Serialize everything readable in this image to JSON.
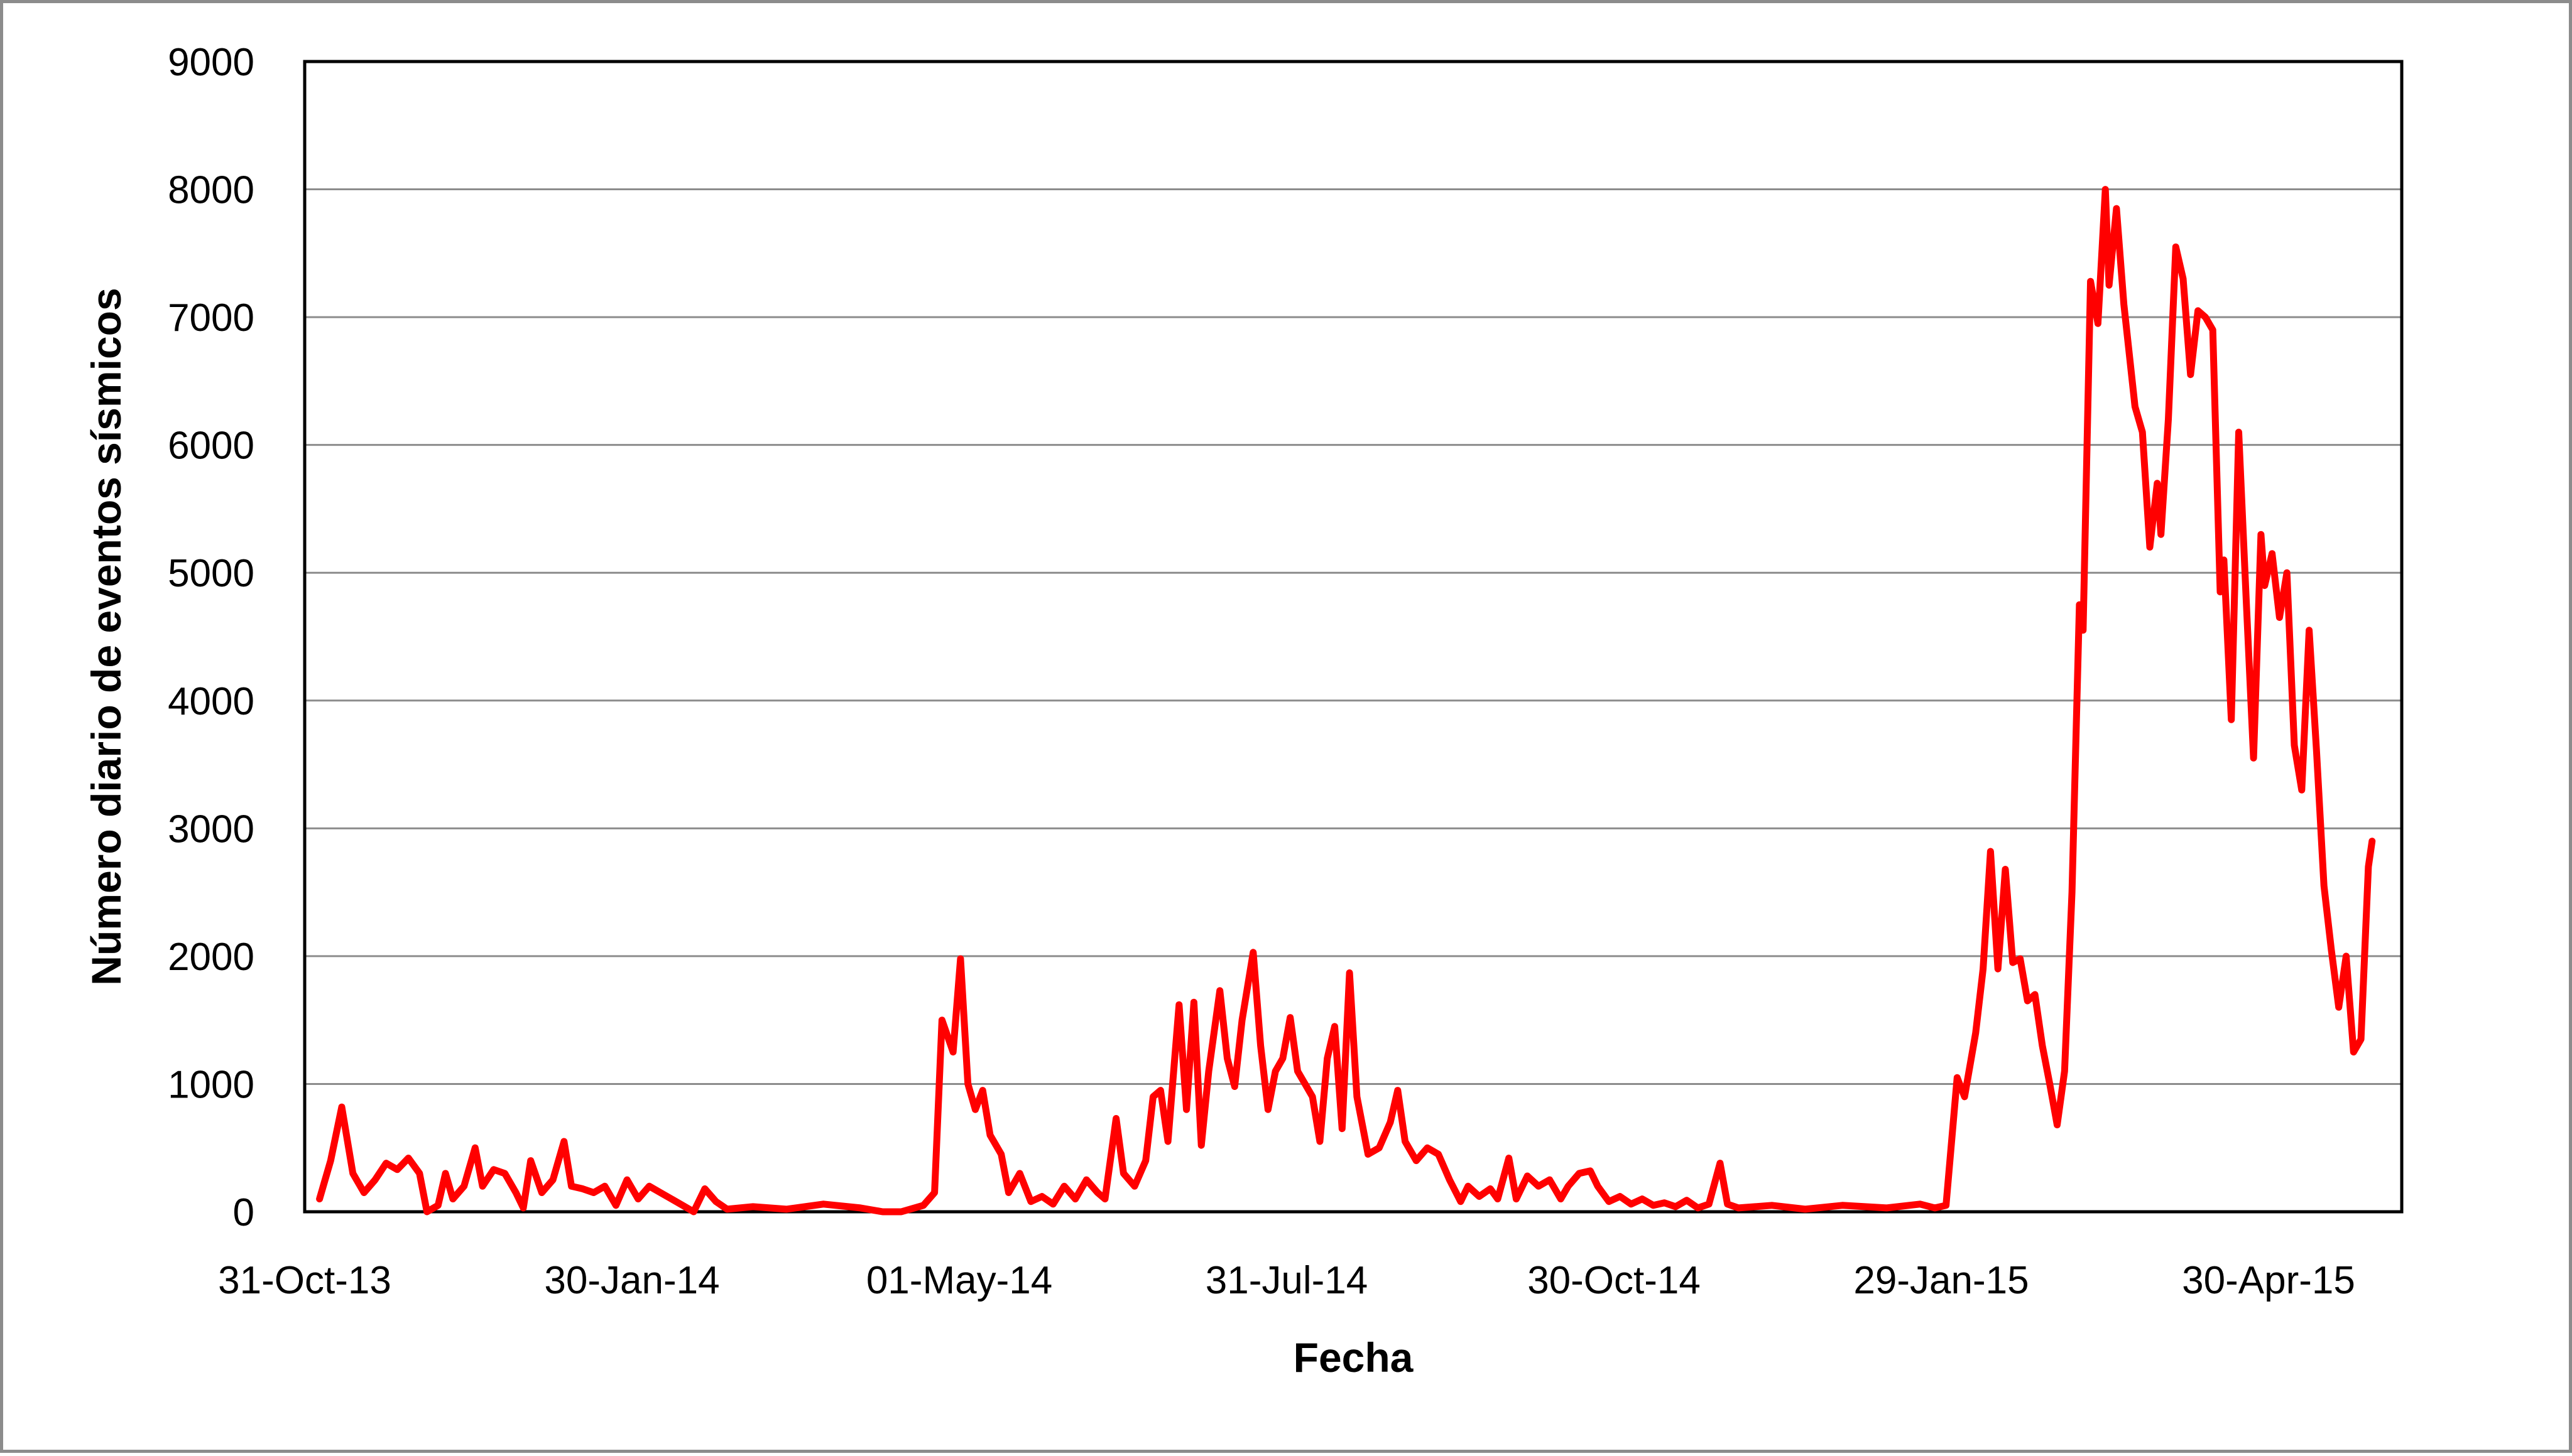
{
  "chart_data": {
    "type": "line",
    "title": "",
    "xlabel": "Fecha",
    "ylabel": "Número diario de eventos sísmicos",
    "x_tick_labels": [
      "31-Oct-13",
      "30-Jan-14",
      "01-May-14",
      "31-Jul-14",
      "30-Oct-14",
      "29-Jan-15",
      "30-Apr-15"
    ],
    "y_tick_labels": [
      "0",
      "1000",
      "2000",
      "3000",
      "4000",
      "5000",
      "6000",
      "7000",
      "8000",
      "9000"
    ],
    "x_range": [
      "2013-10-31",
      "2015-05-20"
    ],
    "ylim": [
      0,
      9000
    ],
    "grid": true,
    "legend": "none",
    "series": [
      {
        "color": "#ff0000",
        "points": [
          [
            "2013-11-04",
            100
          ],
          [
            "2013-11-07",
            400
          ],
          [
            "2013-11-10",
            820
          ],
          [
            "2013-11-13",
            300
          ],
          [
            "2013-11-16",
            150
          ],
          [
            "2013-11-19",
            250
          ],
          [
            "2013-11-22",
            380
          ],
          [
            "2013-11-25",
            330
          ],
          [
            "2013-11-28",
            420
          ],
          [
            "2013-12-01",
            300
          ],
          [
            "2013-12-03",
            0
          ],
          [
            "2013-12-06",
            50
          ],
          [
            "2013-12-08",
            300
          ],
          [
            "2013-12-10",
            100
          ],
          [
            "2013-12-13",
            200
          ],
          [
            "2013-12-16",
            500
          ],
          [
            "2013-12-18",
            200
          ],
          [
            "2013-12-21",
            330
          ],
          [
            "2013-12-24",
            300
          ],
          [
            "2013-12-27",
            150
          ],
          [
            "2013-12-29",
            30
          ],
          [
            "2013-12-31",
            400
          ],
          [
            "2014-01-03",
            150
          ],
          [
            "2014-01-06",
            250
          ],
          [
            "2014-01-09",
            550
          ],
          [
            "2014-01-11",
            200
          ],
          [
            "2014-01-14",
            180
          ],
          [
            "2014-01-17",
            150
          ],
          [
            "2014-01-20",
            200
          ],
          [
            "2014-01-23",
            50
          ],
          [
            "2014-01-26",
            250
          ],
          [
            "2014-01-29",
            100
          ],
          [
            "2014-02-01",
            200
          ],
          [
            "2014-02-04",
            150
          ],
          [
            "2014-02-07",
            100
          ],
          [
            "2014-02-10",
            50
          ],
          [
            "2014-02-13",
            0
          ],
          [
            "2014-02-16",
            180
          ],
          [
            "2014-02-19",
            80
          ],
          [
            "2014-02-22",
            20
          ],
          [
            "2014-03-01",
            40
          ],
          [
            "2014-03-10",
            20
          ],
          [
            "2014-03-20",
            60
          ],
          [
            "2014-03-30",
            30
          ],
          [
            "2014-04-05",
            0
          ],
          [
            "2014-04-10",
            0
          ],
          [
            "2014-04-16",
            50
          ],
          [
            "2014-04-19",
            150
          ],
          [
            "2014-04-21",
            1500
          ],
          [
            "2014-04-24",
            1250
          ],
          [
            "2014-04-26",
            1980
          ],
          [
            "2014-04-28",
            1000
          ],
          [
            "2014-04-30",
            800
          ],
          [
            "2014-05-02",
            950
          ],
          [
            "2014-05-04",
            600
          ],
          [
            "2014-05-07",
            450
          ],
          [
            "2014-05-09",
            150
          ],
          [
            "2014-05-12",
            300
          ],
          [
            "2014-05-15",
            80
          ],
          [
            "2014-05-18",
            120
          ],
          [
            "2014-05-21",
            60
          ],
          [
            "2014-05-24",
            200
          ],
          [
            "2014-05-27",
            100
          ],
          [
            "2014-05-30",
            250
          ],
          [
            "2014-06-02",
            150
          ],
          [
            "2014-06-04",
            100
          ],
          [
            "2014-06-07",
            730
          ],
          [
            "2014-06-09",
            300
          ],
          [
            "2014-06-12",
            200
          ],
          [
            "2014-06-15",
            400
          ],
          [
            "2014-06-17",
            900
          ],
          [
            "2014-06-19",
            950
          ],
          [
            "2014-06-21",
            550
          ],
          [
            "2014-06-24",
            1620
          ],
          [
            "2014-06-26",
            800
          ],
          [
            "2014-06-28",
            1640
          ],
          [
            "2014-06-30",
            520
          ],
          [
            "2014-07-02",
            1100
          ],
          [
            "2014-07-05",
            1730
          ],
          [
            "2014-07-07",
            1200
          ],
          [
            "2014-07-09",
            980
          ],
          [
            "2014-07-11",
            1500
          ],
          [
            "2014-07-14",
            2030
          ],
          [
            "2014-07-16",
            1300
          ],
          [
            "2014-07-18",
            800
          ],
          [
            "2014-07-20",
            1100
          ],
          [
            "2014-07-22",
            1200
          ],
          [
            "2014-07-24",
            1520
          ],
          [
            "2014-07-26",
            1100
          ],
          [
            "2014-07-28",
            1000
          ],
          [
            "2014-07-30",
            900
          ],
          [
            "2014-08-01",
            550
          ],
          [
            "2014-08-03",
            1200
          ],
          [
            "2014-08-05",
            1450
          ],
          [
            "2014-08-07",
            650
          ],
          [
            "2014-08-09",
            1870
          ],
          [
            "2014-08-11",
            900
          ],
          [
            "2014-08-14",
            450
          ],
          [
            "2014-08-17",
            500
          ],
          [
            "2014-08-20",
            700
          ],
          [
            "2014-08-22",
            950
          ],
          [
            "2014-08-24",
            550
          ],
          [
            "2014-08-27",
            400
          ],
          [
            "2014-08-30",
            500
          ],
          [
            "2014-09-02",
            450
          ],
          [
            "2014-09-05",
            250
          ],
          [
            "2014-09-08",
            80
          ],
          [
            "2014-09-10",
            200
          ],
          [
            "2014-09-13",
            120
          ],
          [
            "2014-09-16",
            180
          ],
          [
            "2014-09-18",
            100
          ],
          [
            "2014-09-21",
            420
          ],
          [
            "2014-09-23",
            100
          ],
          [
            "2014-09-26",
            280
          ],
          [
            "2014-09-29",
            200
          ],
          [
            "2014-10-02",
            250
          ],
          [
            "2014-10-05",
            100
          ],
          [
            "2014-10-07",
            200
          ],
          [
            "2014-10-10",
            300
          ],
          [
            "2014-10-13",
            320
          ],
          [
            "2014-10-15",
            200
          ],
          [
            "2014-10-18",
            80
          ],
          [
            "2014-10-21",
            120
          ],
          [
            "2014-10-24",
            60
          ],
          [
            "2014-10-27",
            100
          ],
          [
            "2014-10-30",
            50
          ],
          [
            "2014-11-02",
            70
          ],
          [
            "2014-11-05",
            40
          ],
          [
            "2014-11-08",
            90
          ],
          [
            "2014-11-11",
            30
          ],
          [
            "2014-11-14",
            60
          ],
          [
            "2014-11-17",
            380
          ],
          [
            "2014-11-19",
            60
          ],
          [
            "2014-11-22",
            30
          ],
          [
            "2014-12-01",
            50
          ],
          [
            "2014-12-10",
            20
          ],
          [
            "2014-12-20",
            50
          ],
          [
            "2015-01-01",
            30
          ],
          [
            "2015-01-10",
            60
          ],
          [
            "2015-01-14",
            30
          ],
          [
            "2015-01-17",
            50
          ],
          [
            "2015-01-20",
            1050
          ],
          [
            "2015-01-22",
            900
          ],
          [
            "2015-01-25",
            1400
          ],
          [
            "2015-01-27",
            1900
          ],
          [
            "2015-01-29",
            2820
          ],
          [
            "2015-01-31",
            1900
          ],
          [
            "2015-02-02",
            2680
          ],
          [
            "2015-02-04",
            1950
          ],
          [
            "2015-02-06",
            1980
          ],
          [
            "2015-02-08",
            1650
          ],
          [
            "2015-02-10",
            1700
          ],
          [
            "2015-02-12",
            1300
          ],
          [
            "2015-02-14",
            1000
          ],
          [
            "2015-02-16",
            680
          ],
          [
            "2015-02-18",
            1100
          ],
          [
            "2015-02-20",
            2500
          ],
          [
            "2015-02-22",
            4750
          ],
          [
            "2015-02-23",
            4550
          ],
          [
            "2015-02-25",
            7280
          ],
          [
            "2015-02-27",
            6950
          ],
          [
            "2015-03-01",
            8000
          ],
          [
            "2015-03-02",
            7250
          ],
          [
            "2015-03-04",
            7850
          ],
          [
            "2015-03-06",
            7100
          ],
          [
            "2015-03-09",
            6300
          ],
          [
            "2015-03-11",
            6100
          ],
          [
            "2015-03-13",
            5200
          ],
          [
            "2015-03-15",
            5700
          ],
          [
            "2015-03-16",
            5300
          ],
          [
            "2015-03-18",
            6200
          ],
          [
            "2015-03-20",
            7550
          ],
          [
            "2015-03-22",
            7300
          ],
          [
            "2015-03-24",
            6550
          ],
          [
            "2015-03-26",
            7050
          ],
          [
            "2015-03-28",
            7000
          ],
          [
            "2015-03-30",
            6900
          ],
          [
            "2015-04-01",
            4850
          ],
          [
            "2015-04-02",
            5100
          ],
          [
            "2015-04-04",
            3850
          ],
          [
            "2015-04-06",
            6100
          ],
          [
            "2015-04-08",
            4800
          ],
          [
            "2015-04-10",
            3550
          ],
          [
            "2015-04-12",
            5300
          ],
          [
            "2015-04-13",
            4900
          ],
          [
            "2015-04-15",
            5150
          ],
          [
            "2015-04-17",
            4650
          ],
          [
            "2015-04-19",
            5000
          ],
          [
            "2015-04-21",
            3650
          ],
          [
            "2015-04-23",
            3300
          ],
          [
            "2015-04-25",
            4550
          ],
          [
            "2015-04-27",
            3600
          ],
          [
            "2015-04-29",
            2550
          ],
          [
            "2015-05-01",
            2050
          ],
          [
            "2015-05-03",
            1600
          ],
          [
            "2015-05-05",
            2000
          ],
          [
            "2015-05-07",
            1250
          ],
          [
            "2015-05-09",
            1350
          ],
          [
            "2015-05-11",
            2700
          ],
          [
            "2015-05-12",
            2900
          ]
        ]
      }
    ]
  }
}
